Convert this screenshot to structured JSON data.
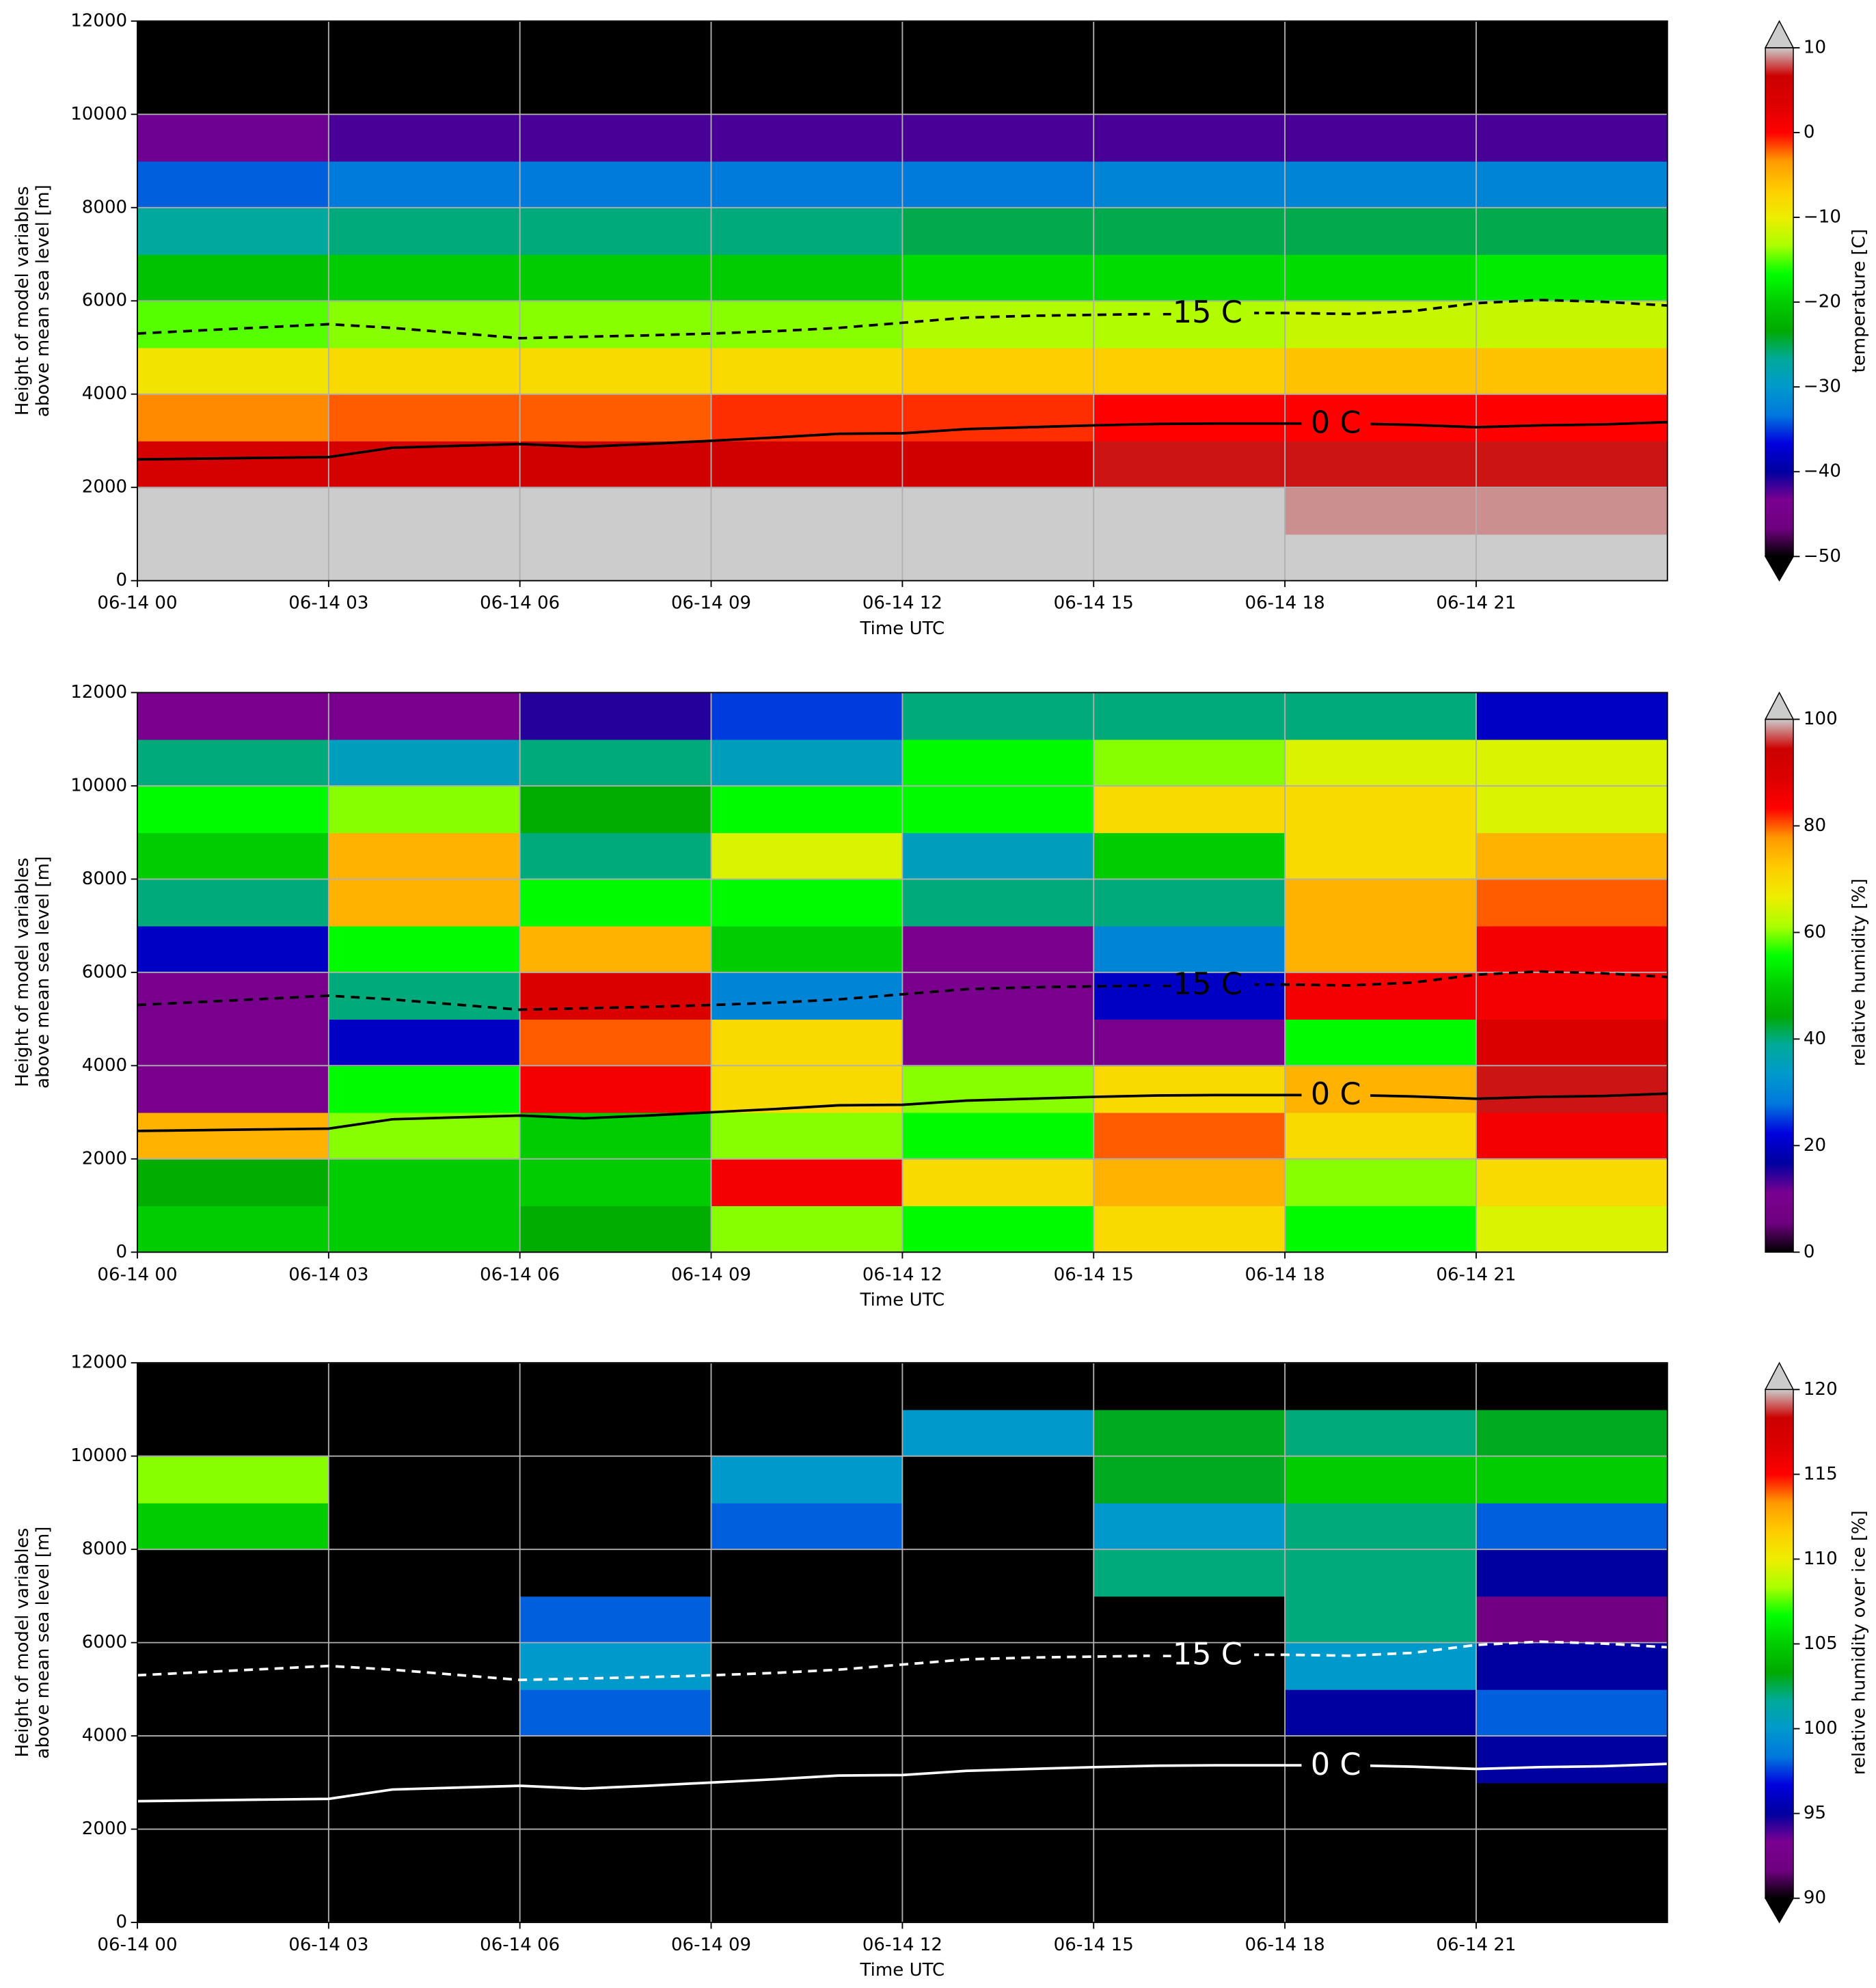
{
  "chart_data": [
    {
      "type": "heatmap",
      "xlabel": "Time UTC",
      "ylabel": [
        "Height of model variables",
        "above mean sea level [m]"
      ],
      "colorbar_label": "temperature [C]",
      "xlim": [
        0,
        24
      ],
      "xticks": [
        {
          "value": 0,
          "label": "06-14 00"
        },
        {
          "value": 3,
          "label": "06-14 03"
        },
        {
          "value": 6,
          "label": "06-14 06"
        },
        {
          "value": 9,
          "label": "06-14 09"
        },
        {
          "value": 12,
          "label": "06-14 12"
        },
        {
          "value": 15,
          "label": "06-14 15"
        },
        {
          "value": 18,
          "label": "06-14 18"
        },
        {
          "value": 21,
          "label": "06-14 21"
        }
      ],
      "ylim": [
        0,
        12000
      ],
      "yticks": [
        0,
        2000,
        4000,
        6000,
        8000,
        10000,
        12000
      ],
      "grid": true,
      "zlim": [
        -50,
        10
      ],
      "zticks": [
        {
          "value": -50,
          "label": "−50"
        },
        {
          "value": -40,
          "label": "−40"
        },
        {
          "value": -30,
          "label": "−30"
        },
        {
          "value": -20,
          "label": "−20"
        },
        {
          "value": -10,
          "label": "−10"
        },
        0,
        10
      ],
      "extend": "both",
      "colormap": [
        "#000000",
        "#6f0080",
        "#7a0090",
        "#0000a0",
        "#0000dd",
        "#0077dd",
        "#0099cc",
        "#00aa99",
        "#00aa00",
        "#00cc00",
        "#00ff00",
        "#aaff00",
        "#eeee00",
        "#ffcc00",
        "#ff9900",
        "#ff0000",
        "#dd0000",
        "#cc0000",
        "#cccccc"
      ],
      "x": [
        1.5,
        4.5,
        7.5,
        10.5,
        13.5,
        16.5,
        19.5,
        22.5
      ],
      "y": [
        500,
        1500,
        2500,
        3500,
        4500,
        5500,
        6500,
        7500,
        8500,
        9500,
        10500,
        11500
      ],
      "z": [
        [
          15,
          15,
          15,
          15,
          15,
          15,
          15,
          15
        ],
        [
          12,
          12,
          12,
          12,
          12,
          11,
          9,
          9
        ],
        [
          5,
          5,
          6,
          6,
          6,
          7,
          7,
          7
        ],
        [
          -3,
          -2,
          -2,
          -1,
          -1,
          0,
          0,
          0
        ],
        [
          -9,
          -8,
          -8,
          -8,
          -7,
          -7,
          -6,
          -6
        ],
        [
          -15,
          -14,
          -14,
          -14,
          -13,
          -13,
          -12,
          -12
        ],
        [
          -21,
          -20,
          -20,
          -20,
          -19,
          -19,
          -19,
          -18
        ],
        [
          -27,
          -26,
          -26,
          -26,
          -25,
          -25,
          -25,
          -25
        ],
        [
          -34,
          -33,
          -33,
          -33,
          -33,
          -32,
          -32,
          -32
        ],
        [
          -43,
          -42,
          -42,
          -42,
          -42,
          -42,
          -42,
          -42
        ],
        [
          -55,
          -55,
          -55,
          -55,
          -55,
          -55,
          -55,
          -55
        ],
        [
          -55,
          -55,
          -55,
          -55,
          -55,
          -55,
          -55,
          -55
        ]
      ],
      "contour_color": "#000000",
      "contours": [
        {
          "label": "0 C",
          "style": "solid",
          "x": [
            0,
            3,
            4,
            6,
            7,
            8,
            9,
            10,
            11,
            12,
            13,
            14,
            15,
            16,
            17,
            18,
            19,
            20,
            21,
            22,
            23,
            24
          ],
          "y": [
            2600,
            2650,
            2850,
            2930,
            2870,
            2930,
            3000,
            3070,
            3150,
            3160,
            3250,
            3290,
            3330,
            3360,
            3370,
            3370,
            3370,
            3340,
            3290,
            3330,
            3350,
            3400
          ]
        },
        {
          "label": "-15 C",
          "style": "dashed",
          "x": [
            0,
            3,
            4,
            6,
            7,
            8,
            9,
            10,
            11,
            12,
            13,
            14,
            15,
            16,
            17,
            18,
            19,
            20,
            21,
            22,
            23,
            24
          ],
          "y": [
            5300,
            5500,
            5420,
            5200,
            5230,
            5260,
            5300,
            5350,
            5420,
            5530,
            5640,
            5680,
            5700,
            5720,
            5740,
            5740,
            5720,
            5780,
            5950,
            6020,
            5980,
            5900
          ]
        }
      ]
    },
    {
      "type": "heatmap",
      "xlabel": "Time UTC",
      "ylabel": [
        "Height of model variables",
        "above mean sea level [m]"
      ],
      "colorbar_label": "relative humidity [%]",
      "xlim": [
        0,
        24
      ],
      "xticks": [
        {
          "value": 0,
          "label": "06-14 00"
        },
        {
          "value": 3,
          "label": "06-14 03"
        },
        {
          "value": 6,
          "label": "06-14 06"
        },
        {
          "value": 9,
          "label": "06-14 09"
        },
        {
          "value": 12,
          "label": "06-14 12"
        },
        {
          "value": 15,
          "label": "06-14 15"
        },
        {
          "value": 18,
          "label": "06-14 18"
        },
        {
          "value": 21,
          "label": "06-14 21"
        }
      ],
      "ylim": [
        0,
        12000
      ],
      "yticks": [
        0,
        2000,
        4000,
        6000,
        8000,
        10000,
        12000
      ],
      "grid": true,
      "zlim": [
        0,
        100
      ],
      "zticks": [
        0,
        20,
        40,
        60,
        80,
        100
      ],
      "extend": "max",
      "colormap": [
        "#000000",
        "#6f0080",
        "#7a0090",
        "#0000a0",
        "#0000dd",
        "#0077dd",
        "#0099cc",
        "#00aa99",
        "#00aa00",
        "#00cc00",
        "#00ff00",
        "#aaff00",
        "#eeee00",
        "#ffcc00",
        "#ff9900",
        "#ff0000",
        "#dd0000",
        "#cc0000",
        "#cccccc"
      ],
      "x": [
        1.5,
        4.5,
        7.5,
        10.5,
        13.5,
        16.5,
        19.5,
        22.5
      ],
      "y": [
        500,
        1500,
        2500,
        3500,
        4500,
        5500,
        6500,
        7500,
        8500,
        9500,
        10500,
        11500
      ],
      "z": [
        [
          50,
          50,
          45,
          60,
          55,
          70,
          55,
          65
        ],
        [
          45,
          50,
          50,
          85,
          70,
          75,
          60,
          70
        ],
        [
          75,
          60,
          50,
          60,
          55,
          80,
          70,
          85
        ],
        [
          10,
          55,
          85,
          70,
          60,
          70,
          75,
          95
        ],
        [
          10,
          20,
          80,
          70,
          10,
          10,
          55,
          90
        ],
        [
          10,
          40,
          90,
          30,
          10,
          20,
          85,
          85
        ],
        [
          20,
          55,
          75,
          50,
          10,
          30,
          75,
          85
        ],
        [
          40,
          75,
          55,
          55,
          40,
          40,
          75,
          80
        ],
        [
          50,
          75,
          40,
          65,
          35,
          50,
          70,
          75
        ],
        [
          55,
          60,
          45,
          55,
          55,
          70,
          70,
          65
        ],
        [
          40,
          35,
          40,
          35,
          55,
          60,
          65,
          65
        ],
        [
          10,
          10,
          15,
          25,
          40,
          40,
          40,
          20
        ]
      ],
      "contour_color": "#000000",
      "contours": [
        {
          "label": "0 C",
          "style": "solid",
          "x": [
            0,
            3,
            4,
            6,
            7,
            8,
            9,
            10,
            11,
            12,
            13,
            14,
            15,
            16,
            17,
            18,
            19,
            20,
            21,
            22,
            23,
            24
          ],
          "y": [
            2600,
            2650,
            2850,
            2930,
            2870,
            2930,
            3000,
            3070,
            3150,
            3160,
            3250,
            3290,
            3330,
            3360,
            3370,
            3370,
            3370,
            3340,
            3290,
            3330,
            3350,
            3400
          ]
        },
        {
          "label": "-15 C",
          "style": "dashed",
          "x": [
            0,
            3,
            4,
            6,
            7,
            8,
            9,
            10,
            11,
            12,
            13,
            14,
            15,
            16,
            17,
            18,
            19,
            20,
            21,
            22,
            23,
            24
          ],
          "y": [
            5300,
            5500,
            5420,
            5200,
            5230,
            5260,
            5300,
            5350,
            5420,
            5530,
            5640,
            5680,
            5700,
            5720,
            5740,
            5740,
            5720,
            5780,
            5950,
            6020,
            5980,
            5900
          ]
        }
      ]
    },
    {
      "type": "heatmap",
      "xlabel": "Time UTC",
      "ylabel": [
        "Height of model variables",
        "above mean sea level [m]"
      ],
      "colorbar_label": "relative humidity over ice [%]",
      "xlim": [
        0,
        24
      ],
      "xticks": [
        {
          "value": 0,
          "label": "06-14 00"
        },
        {
          "value": 3,
          "label": "06-14 03"
        },
        {
          "value": 6,
          "label": "06-14 06"
        },
        {
          "value": 9,
          "label": "06-14 09"
        },
        {
          "value": 12,
          "label": "06-14 12"
        },
        {
          "value": 15,
          "label": "06-14 15"
        },
        {
          "value": 18,
          "label": "06-14 18"
        },
        {
          "value": 21,
          "label": "06-14 21"
        }
      ],
      "ylim": [
        0,
        12000
      ],
      "yticks": [
        0,
        2000,
        4000,
        6000,
        8000,
        10000,
        12000
      ],
      "grid": true,
      "zlim": [
        90,
        120
      ],
      "zticks": [
        90,
        95,
        100,
        105,
        110,
        115,
        120
      ],
      "extend": "both",
      "colormap": [
        "#000000",
        "#6f0080",
        "#7a0090",
        "#0000a0",
        "#0000dd",
        "#0077dd",
        "#0099cc",
        "#00aa99",
        "#00aa00",
        "#00cc00",
        "#00ff00",
        "#aaff00",
        "#eeee00",
        "#ffcc00",
        "#ff9900",
        "#ff0000",
        "#dd0000",
        "#cc0000",
        "#cccccc"
      ],
      "x": [
        1.5,
        4.5,
        7.5,
        10.5,
        13.5,
        16.5,
        19.5,
        22.5
      ],
      "y": [
        500,
        1500,
        2500,
        3500,
        4500,
        5500,
        6500,
        7500,
        8500,
        9500,
        10500,
        11500
      ],
      "z": [
        [
          80,
          80,
          80,
          80,
          80,
          80,
          80,
          80
        ],
        [
          80,
          80,
          80,
          80,
          80,
          80,
          80,
          80
        ],
        [
          80,
          80,
          80,
          80,
          80,
          80,
          80,
          80
        ],
        [
          80,
          80,
          80,
          80,
          80,
          80,
          80,
          95
        ],
        [
          80,
          80,
          98,
          80,
          80,
          80,
          95,
          98
        ],
        [
          80,
          80,
          100,
          80,
          80,
          80,
          100,
          95
        ],
        [
          80,
          80,
          98,
          80,
          80,
          80,
          102,
          92
        ],
        [
          80,
          80,
          80,
          80,
          80,
          102,
          102,
          95
        ],
        [
          105,
          80,
          80,
          98,
          80,
          100,
          102,
          98
        ],
        [
          108,
          80,
          80,
          100,
          80,
          103,
          105,
          105
        ],
        [
          80,
          80,
          80,
          80,
          100,
          103,
          102,
          103
        ],
        [
          80,
          80,
          80,
          80,
          80,
          80,
          80,
          80
        ]
      ],
      "contour_color": "#ffffff",
      "contours": [
        {
          "label": "0 C",
          "style": "solid",
          "x": [
            0,
            3,
            4,
            6,
            7,
            8,
            9,
            10,
            11,
            12,
            13,
            14,
            15,
            16,
            17,
            18,
            19,
            20,
            21,
            22,
            23,
            24
          ],
          "y": [
            2600,
            2650,
            2850,
            2930,
            2870,
            2930,
            3000,
            3070,
            3150,
            3160,
            3250,
            3290,
            3330,
            3360,
            3370,
            3370,
            3370,
            3340,
            3290,
            3330,
            3350,
            3400
          ]
        },
        {
          "label": "-15 C",
          "style": "dashed",
          "x": [
            0,
            3,
            4,
            6,
            7,
            8,
            9,
            10,
            11,
            12,
            13,
            14,
            15,
            16,
            17,
            18,
            19,
            20,
            21,
            22,
            23,
            24
          ],
          "y": [
            5300,
            5500,
            5420,
            5200,
            5230,
            5260,
            5300,
            5350,
            5420,
            5530,
            5640,
            5680,
            5700,
            5720,
            5740,
            5740,
            5720,
            5780,
            5950,
            6020,
            5980,
            5900
          ]
        }
      ]
    }
  ]
}
